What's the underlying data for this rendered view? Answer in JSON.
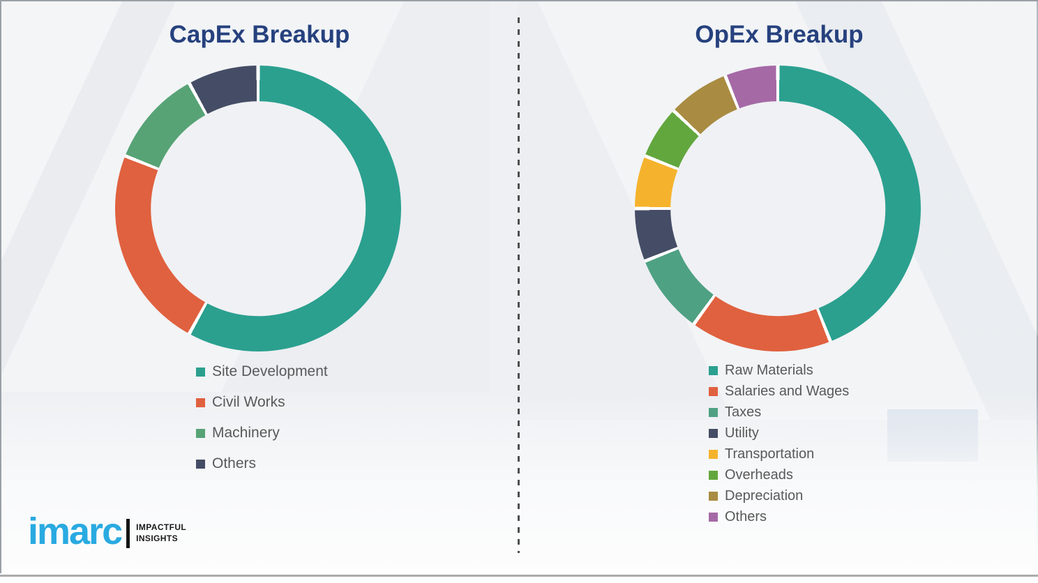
{
  "page": {
    "background_color": "#eef0f3",
    "divider_color": "#4f4f4f",
    "title_color": "#26417e",
    "legend_text_color": "#595959"
  },
  "brand": {
    "logo_text": "imarc",
    "logo_color": "#29aae1",
    "tagline_line1": "IMPACTFUL",
    "tagline_line2": "INSIGHTS"
  },
  "chart_data": [
    {
      "type": "pie",
      "subtype": "donut",
      "title": "CapEx Breakup",
      "categories": [
        "Site Development",
        "Civil Works",
        "Machinery",
        "Others"
      ],
      "values": [
        58,
        23,
        11,
        8
      ],
      "unit": "percent_estimated",
      "colors": [
        "#2ba08f",
        "#e0613f",
        "#57a376",
        "#454d66"
      ],
      "start_angle_deg": 0,
      "direction": "clockwise",
      "legend_position": "below-left",
      "data_labels": false
    },
    {
      "type": "pie",
      "subtype": "donut",
      "title": "OpEx Breakup",
      "categories": [
        "Raw Materials",
        "Salaries and Wages",
        "Taxes",
        "Utility",
        "Transportation",
        "Overheads",
        "Depreciation",
        "Others"
      ],
      "values": [
        44,
        16,
        9,
        6,
        6,
        6,
        7,
        6
      ],
      "unit": "percent_estimated",
      "colors": [
        "#2ba08f",
        "#e0613f",
        "#4fa183",
        "#454d66",
        "#f5b32d",
        "#62a73e",
        "#a98c42",
        "#a569a6"
      ],
      "start_angle_deg": 0,
      "direction": "clockwise",
      "legend_position": "below-left",
      "data_labels": false
    }
  ]
}
